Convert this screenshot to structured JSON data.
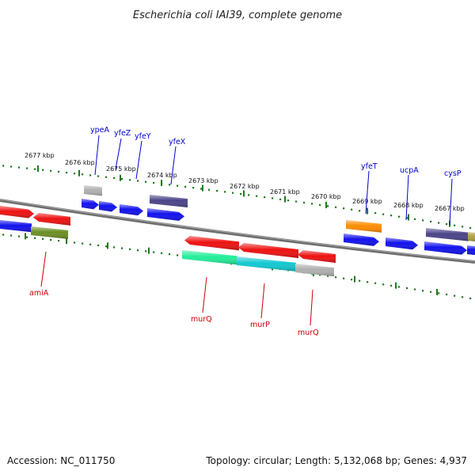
{
  "title": "Escherichia coli IAI39, complete genome",
  "footer": {
    "accession": "Accession: NC_011750",
    "summary": "Topology: circular; Length: 5,132,068 bp; Genes: 4,937"
  },
  "scale_labels": [
    "2677 kbp",
    "2676 kbp",
    "2675 kbp",
    "2674 kbp",
    "2673 kbp",
    "2672 kbp",
    "2671 kbp",
    "2670 kbp",
    "2669 kbp",
    "2668 kbp",
    "2667 kbp"
  ],
  "top_gene_labels": [
    "ypeA",
    "yfeZ",
    "yfeY",
    "yfeX",
    "yfeT",
    "ucpA",
    "cysP"
  ],
  "bottom_gene_labels": [
    "amiA",
    "murQ",
    "murP",
    "murQ"
  ],
  "colors": {
    "red": "#ee1111",
    "blue": "#1111ee",
    "olive": "#6b8e23",
    "gray": "#b0b0b0",
    "darkslate": "#4a4488",
    "orange": "#ff8c00",
    "springgreen": "#22ee99",
    "turquoise": "#11c8d0",
    "tick_green": "#1f7a1f",
    "backbone": "#888888",
    "top_label": "#0000cc",
    "bottom_label": "#cc0000"
  }
}
